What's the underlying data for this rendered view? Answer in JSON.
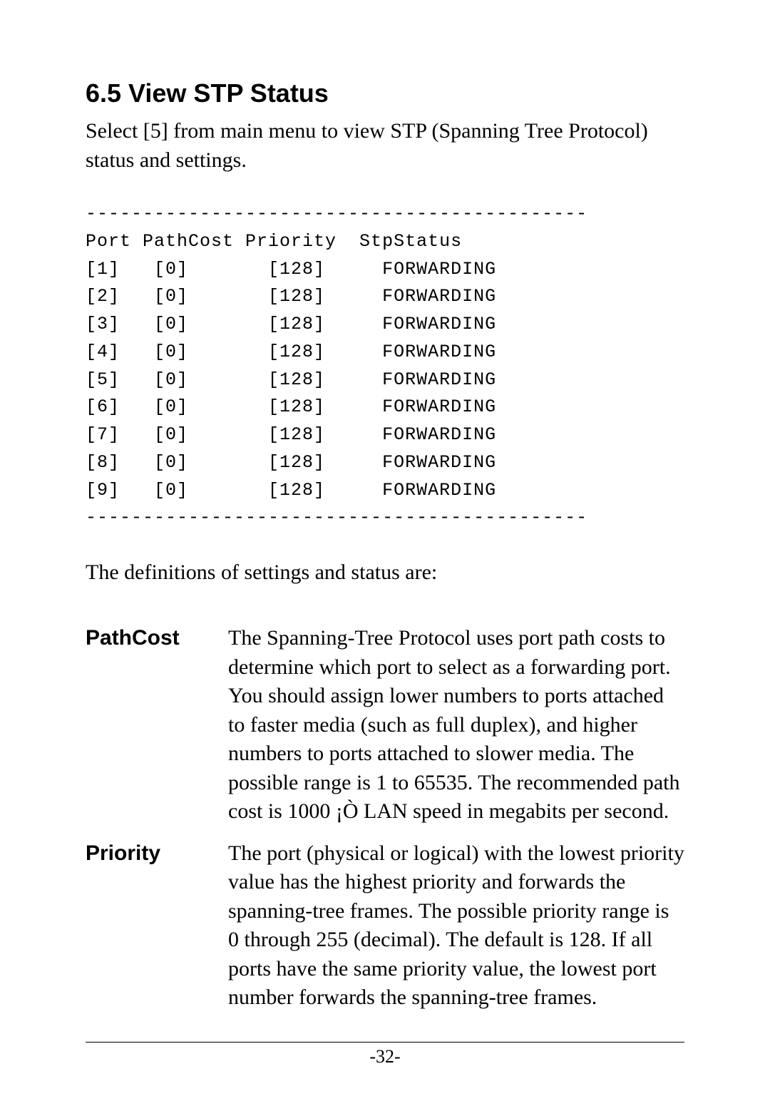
{
  "heading": "6.5 View STP Status",
  "intro": "Select [5] from main menu to view STP (Spanning Tree Protocol) status and settings.",
  "table": {
    "divider": "--------------------------------------------",
    "headers": {
      "port": "Port",
      "pathcost": "PathCost",
      "priority": "Priority",
      "status": "StpStatus"
    },
    "rows": [
      {
        "port": "[1]",
        "pathcost": "[0]",
        "priority": "[128]",
        "status": "FORWARDING"
      },
      {
        "port": "[2]",
        "pathcost": "[0]",
        "priority": "[128]",
        "status": "FORWARDING"
      },
      {
        "port": "[3]",
        "pathcost": "[0]",
        "priority": "[128]",
        "status": "FORWARDING"
      },
      {
        "port": "[4]",
        "pathcost": "[0]",
        "priority": "[128]",
        "status": "FORWARDING"
      },
      {
        "port": "[5]",
        "pathcost": "[0]",
        "priority": "[128]",
        "status": "FORWARDING"
      },
      {
        "port": "[6]",
        "pathcost": "[0]",
        "priority": "[128]",
        "status": "FORWARDING"
      },
      {
        "port": "[7]",
        "pathcost": "[0]",
        "priority": "[128]",
        "status": "FORWARDING"
      },
      {
        "port": "[8]",
        "pathcost": "[0]",
        "priority": "[128]",
        "status": "FORWARDING"
      },
      {
        "port": "[9]",
        "pathcost": "[0]",
        "priority": "[128]",
        "status": "FORWARDING"
      }
    ]
  },
  "definitions_intro": "The definitions of settings and status are:",
  "definitions": [
    {
      "term": "PathCost",
      "desc": "The Spanning-Tree Protocol uses port path costs to determine which port to select as a forwarding port. You should assign lower numbers to ports attached to faster media (such as full duplex), and higher numbers to ports attached to slower media. The possible range is 1 to 65535. The recommended path cost is 1000 ¡Ò LAN speed in megabits per second."
    },
    {
      "term": "Priority",
      "desc": "The port (physical or logical) with the lowest priority value has the highest priority and forwards the spanning-tree frames. The possible priority range is 0 through 255 (decimal). The default is 128. If all ports have the same priority value, the lowest port number forwards the spanning-tree frames."
    }
  ],
  "page_number": "-32-",
  "colors": {
    "text": "#000000",
    "background": "#ffffff"
  }
}
